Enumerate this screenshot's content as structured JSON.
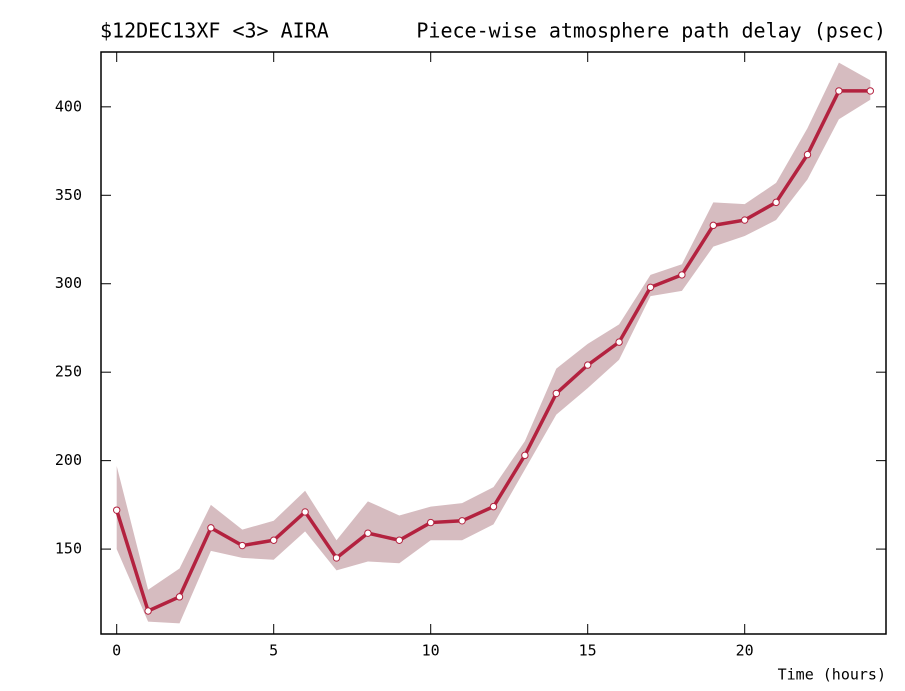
{
  "chart_data": {
    "type": "line",
    "title_left": "$12DEC13XF <3>  AIRA",
    "title": "Piece-wise atmosphere path delay (psec)",
    "x_label": "Time (hours)",
    "x": [
      0,
      1,
      2,
      3,
      4,
      5,
      6,
      7,
      8,
      9,
      10,
      11,
      12,
      13,
      14,
      15,
      16,
      17,
      18,
      19,
      20,
      21,
      22,
      23,
      24
    ],
    "values": [
      172,
      115,
      123,
      162,
      152,
      155,
      171,
      145,
      159,
      155,
      165,
      166,
      174,
      203,
      238,
      254,
      267,
      298,
      305,
      333,
      336,
      346,
      373,
      409,
      409
    ],
    "upper": [
      197,
      127,
      139,
      175,
      161,
      166,
      183,
      155,
      177,
      169,
      174,
      176,
      185,
      211,
      252,
      266,
      277,
      305,
      311,
      346,
      345,
      357,
      388,
      425,
      415
    ],
    "lower": [
      150,
      109,
      108,
      149,
      145,
      144,
      160,
      138,
      143,
      142,
      155,
      155,
      164,
      195,
      226,
      241,
      257,
      293,
      296,
      321,
      327,
      336,
      359,
      393,
      404
    ],
    "color": "#b3223f",
    "band_color": "#d6bcc0",
    "marker_color": "#ffffff",
    "xlim": [
      -0.5,
      24.5
    ],
    "xticks": [
      0,
      5,
      10,
      15,
      20
    ],
    "ylim": [
      102,
      431
    ],
    "yticks": [
      150,
      200,
      250,
      300,
      350,
      400
    ]
  }
}
